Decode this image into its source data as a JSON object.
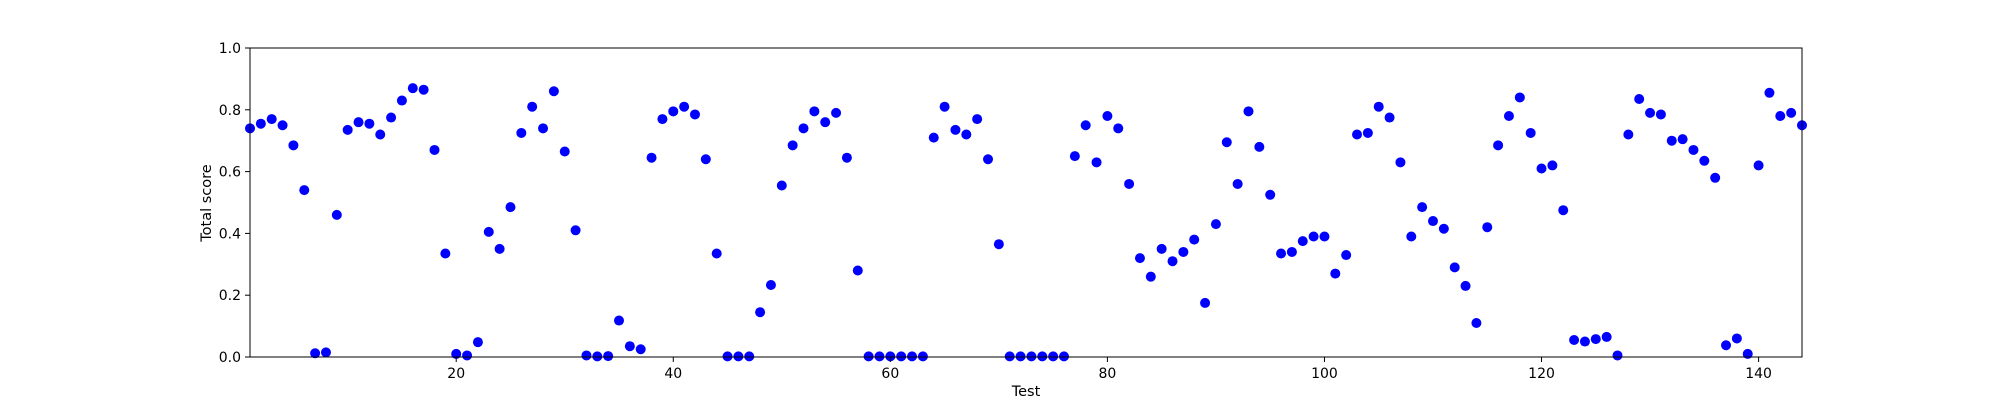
{
  "chart_data": {
    "type": "scatter",
    "xlabel": "Test",
    "ylabel": "Total score",
    "xlim": [
      1,
      144
    ],
    "ylim": [
      0.0,
      1.0
    ],
    "xticks": [
      20,
      40,
      60,
      80,
      100,
      120,
      140
    ],
    "yticks": [
      0.0,
      0.2,
      0.4,
      0.6,
      0.8,
      1.0
    ],
    "ytick_labels": [
      "0.0",
      "0.2",
      "0.4",
      "0.6",
      "0.8",
      "1.0"
    ],
    "grid": false,
    "marker_color": "#0000ff",
    "series": [
      {
        "x": [
          1,
          2,
          3,
          4,
          5,
          6,
          7,
          8,
          9,
          10,
          11,
          12,
          13,
          14,
          15,
          16,
          17,
          18,
          19,
          20,
          21,
          22,
          23,
          24,
          25,
          26,
          27,
          28,
          29,
          30,
          31,
          32,
          33,
          34,
          35,
          36,
          37,
          38,
          39,
          40,
          41,
          42,
          43,
          44,
          45,
          46,
          47,
          48,
          49,
          50,
          51,
          52,
          53,
          54,
          55,
          56,
          57,
          58,
          59,
          60,
          61,
          62,
          63,
          64,
          65,
          66,
          67,
          68,
          69,
          70,
          71,
          72,
          73,
          74,
          75,
          76,
          77,
          78,
          79,
          80,
          81,
          82,
          83,
          84,
          85,
          86,
          87,
          88,
          89,
          90,
          91,
          92,
          93,
          94,
          95,
          96,
          97,
          98,
          99,
          100,
          101,
          102,
          103,
          104,
          105,
          106,
          107,
          108,
          109,
          110,
          111,
          112,
          113,
          114,
          115,
          116,
          117,
          118,
          119,
          120,
          121,
          122,
          123,
          124,
          125,
          126,
          127,
          128,
          129,
          130,
          131,
          132,
          133,
          134,
          135,
          136,
          137,
          138,
          139,
          140,
          141,
          142,
          143,
          144
        ],
        "y": [
          0.74,
          0.755,
          0.77,
          0.75,
          0.685,
          0.54,
          0.012,
          0.015,
          0.46,
          0.735,
          0.76,
          0.755,
          0.72,
          0.775,
          0.83,
          0.87,
          0.865,
          0.67,
          0.335,
          0.01,
          0.005,
          0.048,
          0.405,
          0.35,
          0.485,
          0.725,
          0.81,
          0.74,
          0.86,
          0.665,
          0.41,
          0.005,
          0.002,
          0.003,
          0.118,
          0.035,
          0.025,
          0.645,
          0.77,
          0.795,
          0.81,
          0.785,
          0.64,
          0.335,
          0.002,
          0.002,
          0.002,
          0.145,
          0.233,
          0.555,
          0.685,
          0.74,
          0.795,
          0.76,
          0.79,
          0.645,
          0.28,
          0.002,
          0.002,
          0.002,
          0.002,
          0.002,
          0.002,
          0.71,
          0.81,
          0.735,
          0.72,
          0.77,
          0.64,
          0.365,
          0.002,
          0.002,
          0.002,
          0.002,
          0.002,
          0.002,
          0.65,
          0.75,
          0.63,
          0.78,
          0.74,
          0.56,
          0.32,
          0.26,
          0.35,
          0.31,
          0.34,
          0.38,
          0.175,
          0.43,
          0.695,
          0.56,
          0.795,
          0.68,
          0.525,
          0.335,
          0.34,
          0.375,
          0.39,
          0.39,
          0.27,
          0.33,
          0.72,
          0.725,
          0.81,
          0.775,
          0.63,
          0.39,
          0.485,
          0.44,
          0.415,
          0.29,
          0.23,
          0.11,
          0.42,
          0.685,
          0.78,
          0.84,
          0.725,
          0.61,
          0.62,
          0.475,
          0.055,
          0.05,
          0.058,
          0.065,
          0.005,
          0.72,
          0.835,
          0.79,
          0.785,
          0.7,
          0.705,
          0.67,
          0.635,
          0.58,
          0.038,
          0.06,
          0.01,
          0.62,
          0.855,
          0.78,
          0.79,
          0.75
        ]
      }
    ]
  }
}
